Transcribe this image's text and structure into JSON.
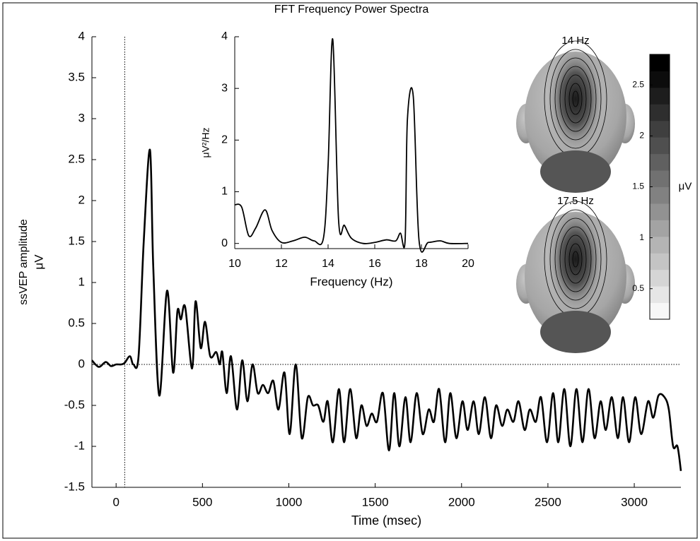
{
  "chart_data": [
    {
      "type": "line",
      "title": null,
      "x_label": "Time (msec)",
      "y_label": "ssVEP amplitude",
      "y_unit": "μV",
      "x": [
        -140,
        -100,
        -60,
        -30,
        0,
        30,
        50,
        80,
        100,
        130,
        160,
        196,
        215,
        250,
        295,
        330,
        355,
        375,
        400,
        440,
        460,
        490,
        515,
        545,
        580,
        600,
        615,
        640,
        665,
        700,
        730,
        760,
        790,
        820,
        850,
        880,
        910,
        940,
        975,
        1005,
        1040,
        1075,
        1110,
        1140,
        1170,
        1200,
        1225,
        1255,
        1290,
        1320,
        1355,
        1390,
        1420,
        1450,
        1480,
        1510,
        1545,
        1580,
        1610,
        1640,
        1675,
        1705,
        1740,
        1775,
        1810,
        1840,
        1870,
        1905,
        1935,
        1970,
        2005,
        2035,
        2070,
        2100,
        2135,
        2170,
        2200,
        2235,
        2265,
        2300,
        2330,
        2365,
        2395,
        2430,
        2460,
        2495,
        2530,
        2560,
        2595,
        2630,
        2665,
        2700,
        2735,
        2770,
        2805,
        2835,
        2870,
        2905,
        2935,
        2970,
        3005,
        3040,
        3080,
        3110,
        3140,
        3175,
        3200,
        3225,
        3250,
        3270
      ],
      "values": [
        0.05,
        -0.03,
        0.03,
        -0.02,
        0,
        0,
        0.02,
        0.1,
        0,
        0.1,
        1.5,
        2.62,
        1.2,
        -0.38,
        0.9,
        -0.1,
        0.65,
        0.55,
        0.7,
        -0.05,
        0.77,
        0.2,
        0.52,
        0.1,
        0.15,
        0,
        0.15,
        -0.35,
        0.1,
        -0.55,
        0.05,
        -0.45,
        0,
        -0.35,
        -0.25,
        -0.35,
        -0.2,
        -0.55,
        -0.1,
        -0.85,
        0,
        -0.9,
        -0.4,
        -0.5,
        -0.5,
        -0.7,
        -0.45,
        -0.95,
        -0.3,
        -0.95,
        -0.3,
        -0.9,
        -0.5,
        -0.75,
        -0.6,
        -0.7,
        -0.35,
        -1.05,
        -0.35,
        -1,
        -0.4,
        -0.95,
        -0.35,
        -0.85,
        -0.55,
        -0.7,
        -0.3,
        -0.95,
        -0.35,
        -0.9,
        -0.45,
        -0.8,
        -0.45,
        -0.85,
        -0.4,
        -0.9,
        -0.5,
        -0.75,
        -0.55,
        -0.7,
        -0.45,
        -0.8,
        -0.55,
        -0.7,
        -0.4,
        -0.95,
        -0.35,
        -0.95,
        -0.3,
        -1,
        -0.3,
        -0.95,
        -0.3,
        -0.9,
        -0.45,
        -0.8,
        -0.4,
        -0.9,
        -0.4,
        -0.95,
        -0.4,
        -0.85,
        -0.45,
        -0.65,
        -0.38,
        -0.4,
        -0.55,
        -1,
        -1,
        -1.3
      ],
      "color": "#000000",
      "xlim": [
        -140,
        3270
      ],
      "xticks": [
        0,
        500,
        1000,
        1500,
        2000,
        2500,
        3000
      ],
      "ylim": [
        -1.5,
        4
      ],
      "yticks": [
        -1.5,
        -1,
        -0.5,
        0,
        0.5,
        1,
        1.5,
        2,
        2.5,
        3,
        3.5,
        4
      ],
      "hline": 0,
      "vline": 50
    },
    {
      "type": "line",
      "title": "FFT Frequency Power Spectra",
      "x_label": "Frequency (Hz)",
      "y_label": "μV²/Hz",
      "y_unit": null,
      "x": [
        10,
        10.3,
        10.6,
        10.9,
        11.3,
        11.6,
        12,
        12.5,
        13,
        13.4,
        13.8,
        14,
        14.2,
        14.45,
        14.7,
        15,
        15.5,
        16,
        16.5,
        16.9,
        17.1,
        17.3,
        17.4,
        17.65,
        17.9,
        18.3,
        18.8,
        19.2,
        20
      ],
      "values": [
        0.75,
        0.7,
        0.15,
        0.3,
        0.65,
        0.25,
        0.02,
        0.05,
        0.12,
        0.05,
        0.1,
        1.5,
        3.95,
        0.45,
        0.35,
        0.1,
        0,
        0.02,
        0.07,
        0.05,
        0.2,
        0.05,
        2.4,
        2.85,
        0.05,
        0.02,
        0.05,
        0,
        0
      ],
      "color": "#000000",
      "xlim": [
        10,
        20
      ],
      "xticks": [
        10,
        12,
        14,
        16,
        18,
        20
      ],
      "ylim": [
        -0.1,
        4
      ],
      "yticks": [
        0,
        1,
        2,
        3,
        4
      ],
      "hline": null,
      "vline": null
    },
    {
      "type": "colorbar",
      "title": null,
      "x_label": null,
      "y_label": null,
      "y_unit": "μV",
      "ylim": [
        0.2,
        2.8
      ],
      "yticks": [
        0.5,
        1,
        1.5,
        2,
        2.5
      ]
    }
  ],
  "topomaps": {
    "titles": [
      "14 Hz",
      "17.5 Hz"
    ]
  }
}
